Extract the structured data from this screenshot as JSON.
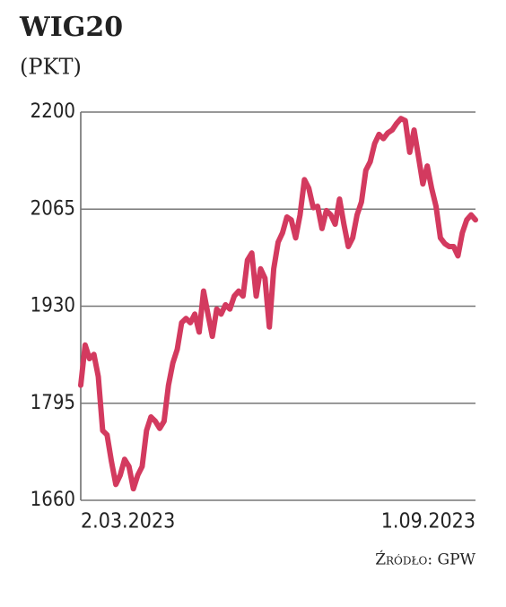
{
  "chart_data": {
    "type": "line",
    "title": "WIG20",
    "subtitle": "(PKT)",
    "source": "Źródło: GPW",
    "categories": [
      "2.03.2023",
      null,
      null,
      null,
      null,
      null,
      null,
      null,
      null,
      null,
      null,
      null,
      null,
      null,
      null,
      null,
      null,
      null,
      null,
      null,
      null,
      null,
      null,
      null,
      null,
      null,
      null,
      null,
      null,
      null,
      null,
      null,
      null,
      null,
      null,
      null,
      null,
      null,
      null,
      null,
      null,
      null,
      null,
      null,
      null,
      null,
      null,
      null,
      null,
      null,
      null,
      null,
      null,
      null,
      null,
      null,
      null,
      null,
      null,
      null,
      null,
      null,
      null,
      null,
      null,
      null,
      null,
      null,
      null,
      null,
      null,
      null,
      null,
      null,
      null,
      null,
      null,
      null,
      null,
      null,
      null,
      null,
      null,
      null,
      null,
      null,
      null,
      null,
      null,
      null,
      "1.09.2023"
    ],
    "values": [
      1820,
      1876,
      1857,
      1863,
      1832,
      1757,
      1751,
      1714,
      1682,
      1695,
      1717,
      1707,
      1676,
      1695,
      1707,
      1757,
      1776,
      1770,
      1760,
      1770,
      1820,
      1851,
      1870,
      1907,
      1913,
      1907,
      1919,
      1894,
      1951,
      1919,
      1888,
      1926,
      1919,
      1932,
      1926,
      1944,
      1951,
      1944,
      1994,
      2004,
      1944,
      1982,
      1969,
      1901,
      1982,
      2019,
      2032,
      2054,
      2050,
      2025,
      2057,
      2106,
      2094,
      2067,
      2069,
      2038,
      2063,
      2057,
      2044,
      2079,
      2044,
      2013,
      2025,
      2057,
      2075,
      2119,
      2131,
      2156,
      2169,
      2163,
      2171,
      2175,
      2184,
      2191,
      2188,
      2144,
      2175,
      2138,
      2100,
      2125,
      2094,
      2069,
      2025,
      2017,
      2013,
      2013,
      2000,
      2032,
      2050,
      2057,
      2050
    ],
    "color": "#d33a5f",
    "ylim": [
      1660,
      2200
    ],
    "yticks": [
      1660,
      1795,
      1930,
      2065,
      2200
    ],
    "grid": true
  }
}
